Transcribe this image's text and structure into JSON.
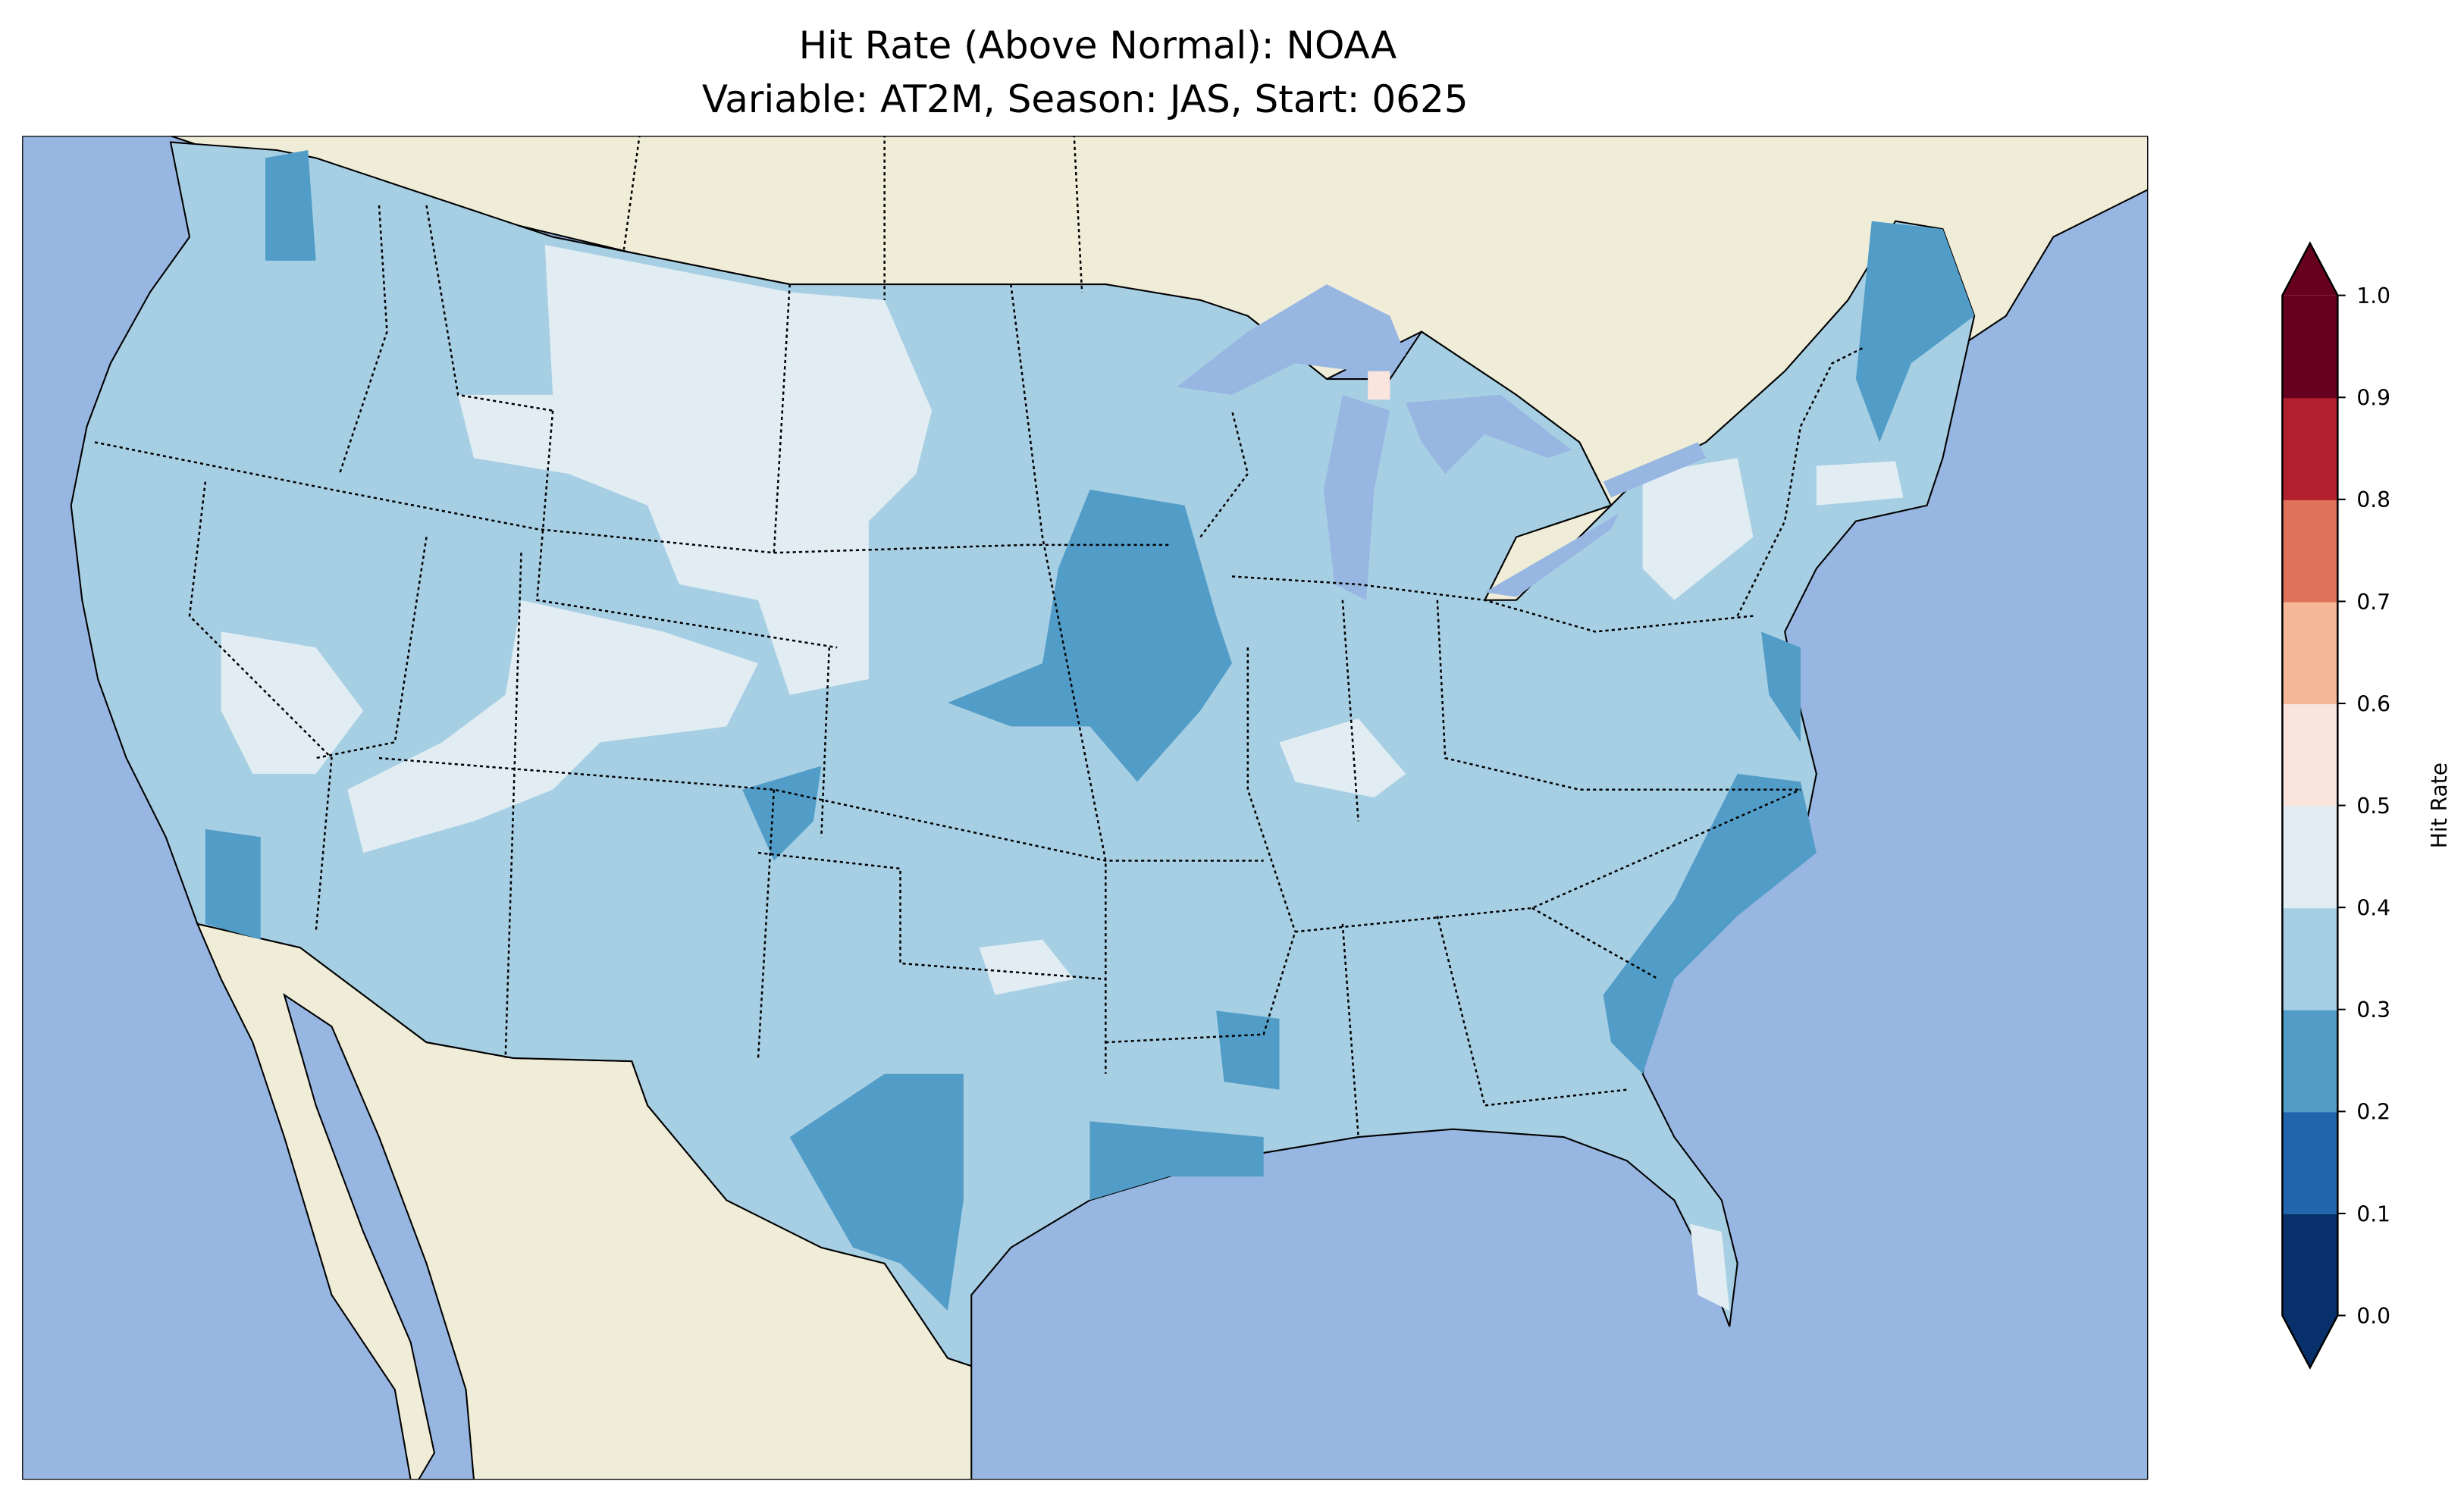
{
  "chart_data": {
    "type": "heatmap",
    "title": "Hit Rate (Above Normal): NOAA",
    "subtitle": "Variable: AT2M, Season: JAS, Start: 0625",
    "colorbar": {
      "label": "Hit Rate",
      "range": [
        0.0,
        1.0
      ],
      "extend": "both",
      "ticks": [
        "0.0",
        "0.1",
        "0.2",
        "0.3",
        "0.4",
        "0.5",
        "0.6",
        "0.7",
        "0.8",
        "0.9",
        "1.0"
      ],
      "levels": [
        0.0,
        0.1,
        0.2,
        0.3,
        0.4,
        0.5,
        0.6,
        0.7,
        0.8,
        0.9,
        1.0
      ],
      "colors": [
        "#08306b",
        "#2166ac",
        "#529dc8",
        "#a7cfe4",
        "#e1edf3",
        "#f9e5dd",
        "#f6b799",
        "#de725b",
        "#b2202d",
        "#67001f"
      ]
    },
    "map": {
      "region": "Contiguous United States",
      "ocean_color": "#97b6e1",
      "land_color": "#efedd8",
      "dominant_value_range": [
        0.3,
        0.4
      ],
      "regions": [
        {
          "area": "Iowa / Missouri",
          "range": [
            0.2,
            0.3
          ]
        },
        {
          "area": "Maine",
          "range": [
            0.2,
            0.3
          ]
        },
        {
          "area": "North Carolina / South Carolina coast",
          "range": [
            0.2,
            0.3
          ]
        },
        {
          "area": "South Texas",
          "range": [
            0.2,
            0.3
          ]
        },
        {
          "area": "Southern California",
          "range": [
            0.2,
            0.3
          ]
        },
        {
          "area": "Montana / Wyoming / North Dakota",
          "range": [
            0.4,
            0.5
          ]
        },
        {
          "area": "Utah / Nevada",
          "range": [
            0.4,
            0.5
          ]
        },
        {
          "area": "New York / Massachusetts",
          "range": [
            0.4,
            0.5
          ]
        },
        {
          "area": "Upper Michigan",
          "range": [
            0.5,
            0.6
          ]
        }
      ]
    }
  }
}
